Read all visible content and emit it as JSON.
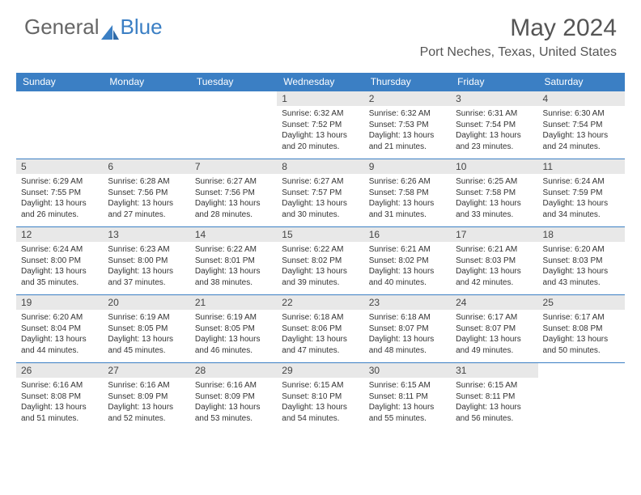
{
  "logo": {
    "part1": "General",
    "part2": "Blue"
  },
  "title": "May 2024",
  "location": "Port Neches, Texas, United States",
  "colors": {
    "accent": "#3b7fc4",
    "header_text": "#ffffff",
    "daynum_bg": "#e8e8e8",
    "body_text": "#333333"
  },
  "day_headers": [
    "Sunday",
    "Monday",
    "Tuesday",
    "Wednesday",
    "Thursday",
    "Friday",
    "Saturday"
  ],
  "weeks": [
    [
      {
        "n": "",
        "lines": []
      },
      {
        "n": "",
        "lines": []
      },
      {
        "n": "",
        "lines": []
      },
      {
        "n": "1",
        "lines": [
          "Sunrise: 6:32 AM",
          "Sunset: 7:52 PM",
          "Daylight: 13 hours",
          "and 20 minutes."
        ]
      },
      {
        "n": "2",
        "lines": [
          "Sunrise: 6:32 AM",
          "Sunset: 7:53 PM",
          "Daylight: 13 hours",
          "and 21 minutes."
        ]
      },
      {
        "n": "3",
        "lines": [
          "Sunrise: 6:31 AM",
          "Sunset: 7:54 PM",
          "Daylight: 13 hours",
          "and 23 minutes."
        ]
      },
      {
        "n": "4",
        "lines": [
          "Sunrise: 6:30 AM",
          "Sunset: 7:54 PM",
          "Daylight: 13 hours",
          "and 24 minutes."
        ]
      }
    ],
    [
      {
        "n": "5",
        "lines": [
          "Sunrise: 6:29 AM",
          "Sunset: 7:55 PM",
          "Daylight: 13 hours",
          "and 26 minutes."
        ]
      },
      {
        "n": "6",
        "lines": [
          "Sunrise: 6:28 AM",
          "Sunset: 7:56 PM",
          "Daylight: 13 hours",
          "and 27 minutes."
        ]
      },
      {
        "n": "7",
        "lines": [
          "Sunrise: 6:27 AM",
          "Sunset: 7:56 PM",
          "Daylight: 13 hours",
          "and 28 minutes."
        ]
      },
      {
        "n": "8",
        "lines": [
          "Sunrise: 6:27 AM",
          "Sunset: 7:57 PM",
          "Daylight: 13 hours",
          "and 30 minutes."
        ]
      },
      {
        "n": "9",
        "lines": [
          "Sunrise: 6:26 AM",
          "Sunset: 7:58 PM",
          "Daylight: 13 hours",
          "and 31 minutes."
        ]
      },
      {
        "n": "10",
        "lines": [
          "Sunrise: 6:25 AM",
          "Sunset: 7:58 PM",
          "Daylight: 13 hours",
          "and 33 minutes."
        ]
      },
      {
        "n": "11",
        "lines": [
          "Sunrise: 6:24 AM",
          "Sunset: 7:59 PM",
          "Daylight: 13 hours",
          "and 34 minutes."
        ]
      }
    ],
    [
      {
        "n": "12",
        "lines": [
          "Sunrise: 6:24 AM",
          "Sunset: 8:00 PM",
          "Daylight: 13 hours",
          "and 35 minutes."
        ]
      },
      {
        "n": "13",
        "lines": [
          "Sunrise: 6:23 AM",
          "Sunset: 8:00 PM",
          "Daylight: 13 hours",
          "and 37 minutes."
        ]
      },
      {
        "n": "14",
        "lines": [
          "Sunrise: 6:22 AM",
          "Sunset: 8:01 PM",
          "Daylight: 13 hours",
          "and 38 minutes."
        ]
      },
      {
        "n": "15",
        "lines": [
          "Sunrise: 6:22 AM",
          "Sunset: 8:02 PM",
          "Daylight: 13 hours",
          "and 39 minutes."
        ]
      },
      {
        "n": "16",
        "lines": [
          "Sunrise: 6:21 AM",
          "Sunset: 8:02 PM",
          "Daylight: 13 hours",
          "and 40 minutes."
        ]
      },
      {
        "n": "17",
        "lines": [
          "Sunrise: 6:21 AM",
          "Sunset: 8:03 PM",
          "Daylight: 13 hours",
          "and 42 minutes."
        ]
      },
      {
        "n": "18",
        "lines": [
          "Sunrise: 6:20 AM",
          "Sunset: 8:03 PM",
          "Daylight: 13 hours",
          "and 43 minutes."
        ]
      }
    ],
    [
      {
        "n": "19",
        "lines": [
          "Sunrise: 6:20 AM",
          "Sunset: 8:04 PM",
          "Daylight: 13 hours",
          "and 44 minutes."
        ]
      },
      {
        "n": "20",
        "lines": [
          "Sunrise: 6:19 AM",
          "Sunset: 8:05 PM",
          "Daylight: 13 hours",
          "and 45 minutes."
        ]
      },
      {
        "n": "21",
        "lines": [
          "Sunrise: 6:19 AM",
          "Sunset: 8:05 PM",
          "Daylight: 13 hours",
          "and 46 minutes."
        ]
      },
      {
        "n": "22",
        "lines": [
          "Sunrise: 6:18 AM",
          "Sunset: 8:06 PM",
          "Daylight: 13 hours",
          "and 47 minutes."
        ]
      },
      {
        "n": "23",
        "lines": [
          "Sunrise: 6:18 AM",
          "Sunset: 8:07 PM",
          "Daylight: 13 hours",
          "and 48 minutes."
        ]
      },
      {
        "n": "24",
        "lines": [
          "Sunrise: 6:17 AM",
          "Sunset: 8:07 PM",
          "Daylight: 13 hours",
          "and 49 minutes."
        ]
      },
      {
        "n": "25",
        "lines": [
          "Sunrise: 6:17 AM",
          "Sunset: 8:08 PM",
          "Daylight: 13 hours",
          "and 50 minutes."
        ]
      }
    ],
    [
      {
        "n": "26",
        "lines": [
          "Sunrise: 6:16 AM",
          "Sunset: 8:08 PM",
          "Daylight: 13 hours",
          "and 51 minutes."
        ]
      },
      {
        "n": "27",
        "lines": [
          "Sunrise: 6:16 AM",
          "Sunset: 8:09 PM",
          "Daylight: 13 hours",
          "and 52 minutes."
        ]
      },
      {
        "n": "28",
        "lines": [
          "Sunrise: 6:16 AM",
          "Sunset: 8:09 PM",
          "Daylight: 13 hours",
          "and 53 minutes."
        ]
      },
      {
        "n": "29",
        "lines": [
          "Sunrise: 6:15 AM",
          "Sunset: 8:10 PM",
          "Daylight: 13 hours",
          "and 54 minutes."
        ]
      },
      {
        "n": "30",
        "lines": [
          "Sunrise: 6:15 AM",
          "Sunset: 8:11 PM",
          "Daylight: 13 hours",
          "and 55 minutes."
        ]
      },
      {
        "n": "31",
        "lines": [
          "Sunrise: 6:15 AM",
          "Sunset: 8:11 PM",
          "Daylight: 13 hours",
          "and 56 minutes."
        ]
      },
      {
        "n": "",
        "lines": []
      }
    ]
  ]
}
